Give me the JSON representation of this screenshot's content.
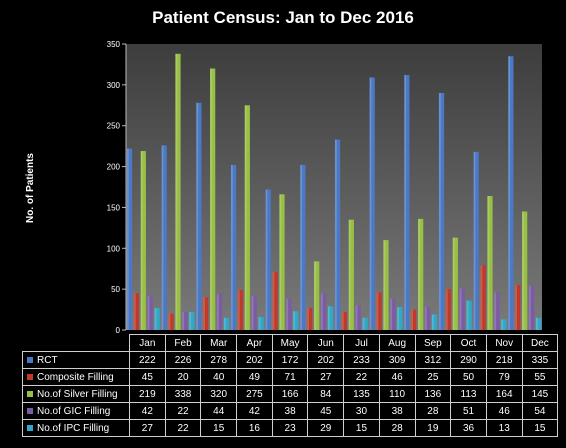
{
  "chart_data": {
    "type": "bar",
    "title": "Patient Census: Jan to Dec 2016",
    "ylabel": "No. of Patients",
    "xlabel": "",
    "categories": [
      "Jan",
      "Feb",
      "Mar",
      "Apr",
      "May",
      "Jun",
      "Jul",
      "Aug",
      "Sep",
      "Oct",
      "Nov",
      "Dec"
    ],
    "ylim": [
      0,
      350
    ],
    "yticks": [
      0,
      50,
      100,
      150,
      200,
      250,
      300,
      350
    ],
    "grid": false,
    "legend_placement": "data-table-below",
    "series": [
      {
        "name": "RCT",
        "color": "#4a79c6",
        "values": [
          222,
          226,
          278,
          202,
          172,
          202,
          233,
          309,
          312,
          290,
          218,
          335
        ]
      },
      {
        "name": "Composite Filling",
        "color": "#c0392b",
        "values": [
          45,
          20,
          40,
          49,
          71,
          27,
          22,
          46,
          25,
          50,
          79,
          55
        ]
      },
      {
        "name": "No.of Silver Filling",
        "color": "#98c044",
        "values": [
          219,
          338,
          320,
          275,
          166,
          84,
          135,
          110,
          136,
          113,
          164,
          145
        ]
      },
      {
        "name": "No.of GIC Filling",
        "color": "#7b5aa6",
        "values": [
          42,
          22,
          44,
          42,
          38,
          45,
          30,
          38,
          28,
          51,
          46,
          54
        ]
      },
      {
        "name": "No.of IPC Filling",
        "color": "#2fa9c9",
        "values": [
          27,
          22,
          15,
          16,
          23,
          29,
          15,
          28,
          19,
          36,
          13,
          15
        ]
      }
    ]
  }
}
